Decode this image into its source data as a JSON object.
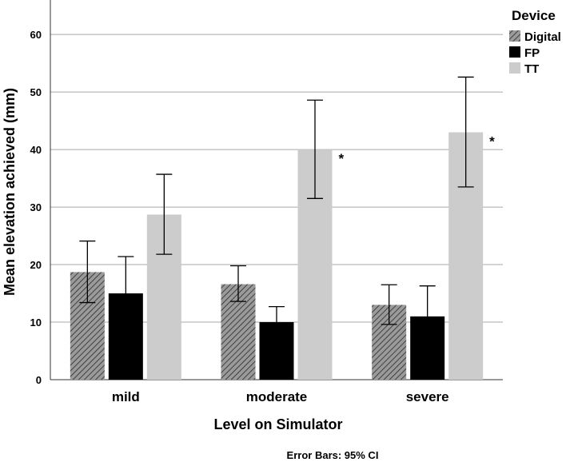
{
  "chart_data": {
    "type": "bar",
    "title": "",
    "xlabel": "Level on Simulator",
    "ylabel": "Mean elevation achieved (mm)",
    "ylim": [
      0,
      66
    ],
    "yticks": [
      0,
      10,
      20,
      30,
      40,
      50,
      60
    ],
    "grid": true,
    "categories": [
      "mild",
      "moderate",
      "severe"
    ],
    "legend": {
      "title": "Device",
      "position": "top-right"
    },
    "series": [
      {
        "name": "Digital",
        "pattern": "hatch",
        "color": "#888888",
        "values": [
          18.7,
          16.6,
          13.0
        ],
        "ci_low": [
          13.4,
          13.6,
          9.6
        ],
        "ci_high": [
          24.1,
          19.8,
          16.5
        ]
      },
      {
        "name": "FP",
        "pattern": "solid",
        "color": "#000000",
        "values": [
          15.0,
          10.0,
          11.0
        ],
        "ci_low": [
          8.7,
          7.3,
          5.6
        ],
        "ci_high": [
          21.4,
          12.7,
          16.3
        ]
      },
      {
        "name": "TT",
        "pattern": "solid",
        "color": "#cccccc",
        "values": [
          28.7,
          40.0,
          43.0
        ],
        "ci_low": [
          21.8,
          31.5,
          33.5
        ],
        "ci_high": [
          35.7,
          48.6,
          52.6
        ]
      }
    ],
    "annotations": [
      {
        "category": "moderate",
        "series": "TT",
        "text": "*"
      },
      {
        "category": "severe",
        "series": "TT",
        "text": "*"
      }
    ],
    "footnote": "Error Bars: 95% CI"
  }
}
